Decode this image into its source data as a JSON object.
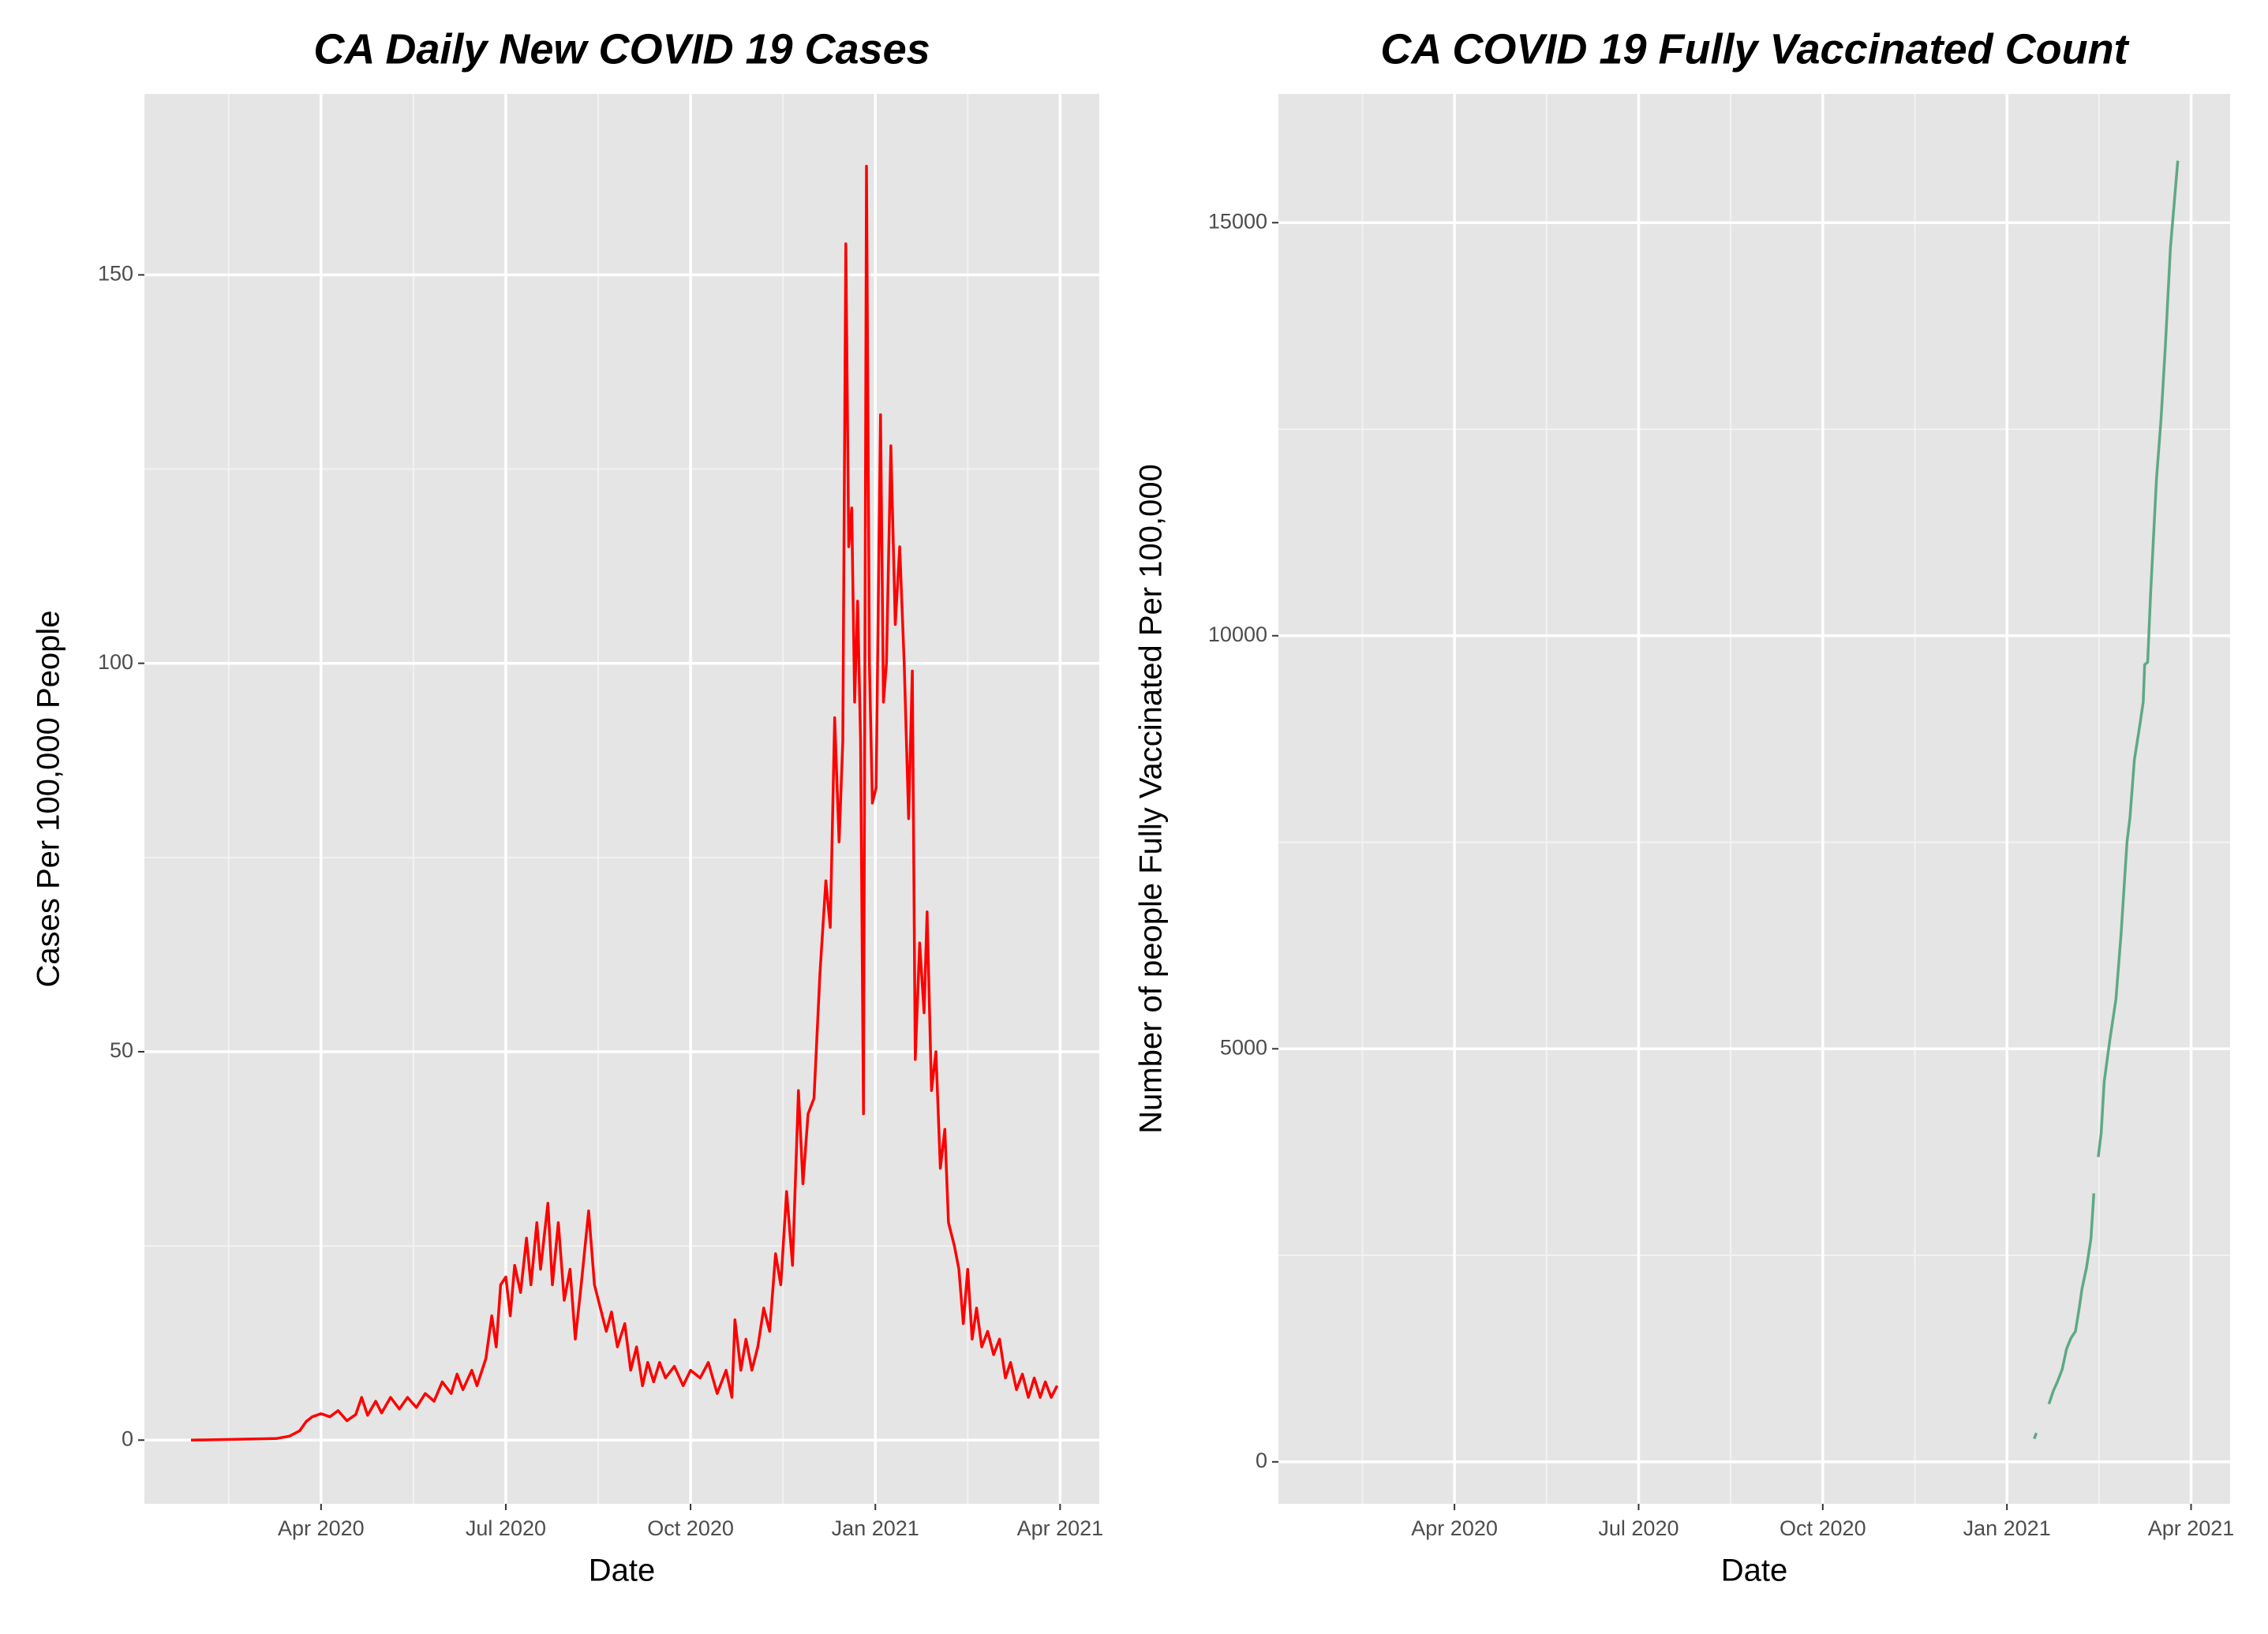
{
  "chart_data": [
    {
      "type": "line",
      "title": "CA Daily New COVID 19 Cases",
      "x_label": "Date",
      "y_label": "Cases Per 100,000 People",
      "color": "#ff0000",
      "xlim": [
        2020.011,
        2021.303
      ],
      "xticks": [
        {
          "value": 2020.25,
          "label": "Apr 2020"
        },
        {
          "value": 2020.5,
          "label": "Jul 2020"
        },
        {
          "value": 2020.75,
          "label": "Oct 2020"
        },
        {
          "value": 2021.0,
          "label": "Jan 2021"
        },
        {
          "value": 2021.25,
          "label": "Apr 2021"
        }
      ],
      "ylim": [
        -8.2,
        173.3
      ],
      "yticks": [
        0,
        50,
        100,
        150
      ],
      "grid": true,
      "x": [
        2020.074,
        2020.189,
        2020.207,
        2020.221,
        2020.23,
        2020.238,
        2020.25,
        2020.262,
        2020.273,
        2020.285,
        2020.297,
        2020.305,
        2020.313,
        2020.324,
        2020.332,
        2020.344,
        2020.356,
        2020.367,
        2020.379,
        2020.391,
        2020.403,
        2020.414,
        2020.426,
        2020.434,
        2020.442,
        2020.454,
        2020.461,
        2020.473,
        2020.481,
        2020.487,
        2020.493,
        2020.5,
        2020.506,
        2020.512,
        2020.52,
        2020.528,
        2020.534,
        2020.542,
        2020.547,
        2020.557,
        2020.563,
        2020.571,
        2020.579,
        2020.587,
        2020.594,
        2020.602,
        2020.612,
        2020.62,
        2020.628,
        2020.636,
        2020.643,
        2020.651,
        2020.661,
        2020.669,
        2020.677,
        2020.685,
        2020.692,
        2020.7,
        2020.708,
        2020.716,
        2020.728,
        2020.74,
        2020.75,
        2020.763,
        2020.774,
        2020.786,
        2020.798,
        2020.806,
        2020.81,
        2020.818,
        2020.825,
        2020.833,
        2020.841,
        2020.849,
        2020.857,
        2020.865,
        2020.872,
        2020.88,
        2020.888,
        2020.896,
        2020.902,
        2020.909,
        2020.917,
        2020.925,
        2020.933,
        2020.939,
        2020.945,
        2020.951,
        2020.956,
        2020.96,
        2020.964,
        2020.968,
        2020.972,
        2020.976,
        2020.98,
        2020.984,
        2020.988,
        2020.992,
        2020.996,
        2021.001,
        2021.007,
        2021.011,
        2021.015,
        2021.021,
        2021.027,
        2021.033,
        2021.039,
        2021.045,
        2021.05,
        2021.054,
        2021.06,
        2021.066,
        2021.07,
        2021.076,
        2021.082,
        2021.088,
        2021.094,
        2021.099,
        2021.107,
        2021.113,
        2021.119,
        2021.125,
        2021.131,
        2021.137,
        2021.144,
        2021.152,
        2021.16,
        2021.168,
        2021.176,
        2021.183,
        2021.191,
        2021.199,
        2021.207,
        2021.215,
        2021.223,
        2021.23,
        2021.238,
        2021.246
      ],
      "values": [
        0,
        0.2,
        0.5,
        1.2,
        2.4,
        3.0,
        3.4,
        3.0,
        3.8,
        2.5,
        3.3,
        5.5,
        3.2,
        5.0,
        3.5,
        5.5,
        4.0,
        5.5,
        4.2,
        6.0,
        5.0,
        7.5,
        6.0,
        8.5,
        6.5,
        9.0,
        7.0,
        10.5,
        16.0,
        12.0,
        20.0,
        21.0,
        16.0,
        22.5,
        19.0,
        26.0,
        20.0,
        28.0,
        22.0,
        30.5,
        20.0,
        28.0,
        18.0,
        22.0,
        13.0,
        20.0,
        29.5,
        20.0,
        17.0,
        14.0,
        16.5,
        12.0,
        15.0,
        9.0,
        12.0,
        7.0,
        10.0,
        7.5,
        10.0,
        8.0,
        9.5,
        7.0,
        9.0,
        8.0,
        10.0,
        6.0,
        9.0,
        5.5,
        15.5,
        9.0,
        13.0,
        9.0,
        12.0,
        17.0,
        14.0,
        24.0,
        20.0,
        32.0,
        22.5,
        45.0,
        33.0,
        42.0,
        44.0,
        60.0,
        72.0,
        66.0,
        93.0,
        77.0,
        90.0,
        154.0,
        115.0,
        120.0,
        95.0,
        108.0,
        90.0,
        42.0,
        164.0,
        100.0,
        82.0,
        84.0,
        132.0,
        95.0,
        100.0,
        128.0,
        105.0,
        115.0,
        100.0,
        80.0,
        99.0,
        49.0,
        64.0,
        55.0,
        68.0,
        45.0,
        50.0,
        35.0,
        40.0,
        28.0,
        25.0,
        22.0,
        15.0,
        22.0,
        13.0,
        17.0,
        12.0,
        14.0,
        11.0,
        13.0,
        8.0,
        10.0,
        6.5,
        8.5,
        5.5,
        8.0,
        5.5,
        7.5,
        5.5,
        7.0
      ]
    },
    {
      "type": "line",
      "title": "CA COVID 19 Fully Vaccinated Count",
      "x_label": "Date",
      "y_label": "Number of people Fully Vaccinated Per 100,000",
      "color": "#5fa886",
      "xlim": [
        2020.011,
        2021.303
      ],
      "xticks": [
        {
          "value": 2020.25,
          "label": "Apr 2020"
        },
        {
          "value": 2020.5,
          "label": "Jul 2020"
        },
        {
          "value": 2020.75,
          "label": "Oct 2020"
        },
        {
          "value": 2021.0,
          "label": "Jan 2021"
        },
        {
          "value": 2021.25,
          "label": "Apr 2021"
        }
      ],
      "ylim": [
        -508,
        16559
      ],
      "yticks": [
        0,
        5000,
        10000,
        15000
      ],
      "grid": true,
      "x": [
        2021.037,
        2021.04,
        2021.048,
        2021.057,
        2021.063,
        2021.069,
        2021.075,
        2021.081,
        2021.087,
        2021.093,
        2021.098,
        2021.102,
        2021.108,
        2021.114,
        2021.118,
        2021.121,
        2021.124,
        2021.128,
        2021.132,
        2021.14,
        2021.148,
        2021.155,
        2021.163,
        2021.167,
        2021.173,
        2021.181,
        2021.185,
        2021.187,
        2021.191,
        2021.195,
        2021.203,
        2021.209,
        2021.215,
        2021.222,
        2021.232
      ],
      "values": [
        280,
        350,
        null,
        700,
        860,
        980,
        1120,
        1370,
        1500,
        1580,
        1850,
        2100,
        2350,
        2700,
        3250,
        null,
        3690,
        3980,
        4600,
        5120,
        5600,
        6400,
        7500,
        7800,
        8500,
        8950,
        9200,
        9650,
        9680,
        10500,
        11900,
        12600,
        13500,
        14700,
        15750
      ]
    }
  ]
}
